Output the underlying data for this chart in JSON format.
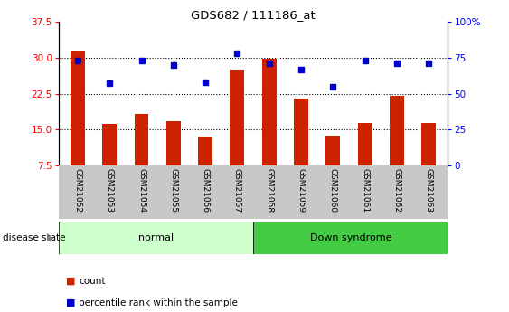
{
  "title": "GDS682 / 111186_at",
  "samples": [
    "GSM21052",
    "GSM21053",
    "GSM21054",
    "GSM21055",
    "GSM21056",
    "GSM21057",
    "GSM21058",
    "GSM21059",
    "GSM21060",
    "GSM21061",
    "GSM21062",
    "GSM21063"
  ],
  "bar_values": [
    31.5,
    16.2,
    18.2,
    16.8,
    13.5,
    27.5,
    29.8,
    21.5,
    13.7,
    16.3,
    22.0,
    16.3
  ],
  "percentile_values": [
    73,
    57,
    73,
    70,
    58,
    78,
    71,
    67,
    55,
    73,
    71,
    71
  ],
  "bar_color": "#cc2200",
  "dot_color": "#0000cc",
  "ylim_left": [
    7.5,
    37.5
  ],
  "ylim_right": [
    0,
    100
  ],
  "yticks_left": [
    7.5,
    15.0,
    22.5,
    30.0,
    37.5
  ],
  "yticks_right": [
    0,
    25,
    50,
    75,
    100
  ],
  "grid_lines": [
    15.0,
    22.5,
    30.0
  ],
  "normal_label": "normal",
  "down_label": "Down syndrome",
  "disease_state_label": "disease state",
  "legend_count": "count",
  "legend_percentile": "percentile rank within the sample",
  "normal_color": "#ccffcc",
  "down_color": "#44cc44",
  "tick_bg_color": "#c8c8c8",
  "bar_bottom": 7.5,
  "bar_width": 0.45
}
